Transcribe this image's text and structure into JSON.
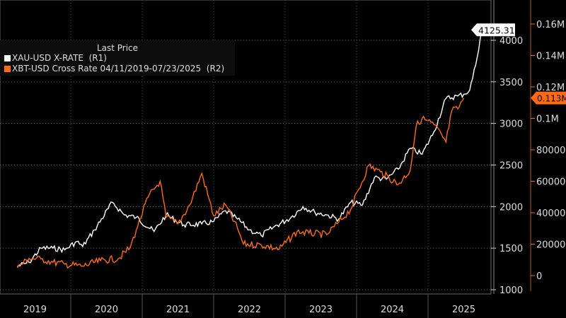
{
  "chart_data": {
    "type": "line",
    "legend_title": "Last Price",
    "legend_placement": "top-left",
    "x_tick_labels": [
      "2019",
      "2020",
      "2021",
      "2022",
      "2023",
      "2024",
      "2025"
    ],
    "left_axis": {
      "ticks": [
        1000,
        1500,
        2000,
        2500,
        3000,
        3500,
        4000
      ],
      "range": [
        1000,
        4500
      ]
    },
    "right_axis": {
      "ticks": [
        0,
        20000,
        40000,
        60000,
        80000,
        100000,
        120000,
        140000,
        160000
      ],
      "tick_labels": [
        "0",
        "20000",
        "40000",
        "60000",
        "80000",
        "0.1M",
        "0.12M",
        "0.14M",
        "0.16M"
      ],
      "range": [
        -5000,
        175000
      ]
    },
    "series": [
      {
        "name": "XAU-USD X-RATE  (R1)",
        "axis": "left",
        "color": "#ffffff",
        "last_label": "4125.31",
        "x": [
          "2019-04",
          "2019-06",
          "2019-08",
          "2019-10",
          "2019-12",
          "2020-02",
          "2020-03",
          "2020-05",
          "2020-08",
          "2020-10",
          "2020-12",
          "2021-03",
          "2021-05",
          "2021-08",
          "2021-11",
          "2022-01",
          "2022-03",
          "2022-05",
          "2022-07",
          "2022-09",
          "2022-11",
          "2023-02",
          "2023-04",
          "2023-06",
          "2023-08",
          "2023-10",
          "2023-12",
          "2024-02",
          "2024-04",
          "2024-06",
          "2024-08",
          "2024-10",
          "2024-12",
          "2025-02",
          "2025-04",
          "2025-06",
          "2025-07",
          "2025-08",
          "2025-09",
          "2025-10"
        ],
        "values": [
          1280,
          1330,
          1500,
          1500,
          1480,
          1580,
          1520,
          1720,
          2050,
          1900,
          1870,
          1700,
          1900,
          1780,
          1790,
          1820,
          1950,
          1850,
          1720,
          1650,
          1750,
          1870,
          2000,
          1930,
          1900,
          1850,
          2050,
          2020,
          2350,
          2330,
          2450,
          2700,
          2630,
          2900,
          3300,
          3330,
          3350,
          3400,
          3700,
          4125.31
        ]
      },
      {
        "name": "XBT-USD Cross Rate 04/11/2019-07/23/2025  (R2)",
        "axis": "right",
        "color": "#ff6a14",
        "last_label": "0.113M",
        "x": [
          "2019-04",
          "2019-06",
          "2019-08",
          "2019-10",
          "2019-12",
          "2020-03",
          "2020-06",
          "2020-09",
          "2020-11",
          "2020-12",
          "2021-02",
          "2021-04",
          "2021-05",
          "2021-07",
          "2021-09",
          "2021-11",
          "2022-01",
          "2022-03",
          "2022-05",
          "2022-06",
          "2022-09",
          "2022-12",
          "2023-03",
          "2023-05",
          "2023-08",
          "2023-10",
          "2023-12",
          "2024-03",
          "2024-05",
          "2024-08",
          "2024-10",
          "2024-11",
          "2024-12",
          "2025-02",
          "2025-04",
          "2025-05",
          "2025-06",
          "2025-07"
        ],
        "values": [
          5000,
          11000,
          10500,
          8500,
          7200,
          6000,
          9500,
          10800,
          18000,
          29000,
          50000,
          60000,
          37000,
          33000,
          45000,
          65000,
          38000,
          45000,
          30000,
          20000,
          19500,
          16800,
          28000,
          27000,
          26000,
          34000,
          42000,
          70000,
          66000,
          58000,
          67000,
          95000,
          100000,
          96000,
          85000,
          105000,
          106000,
          113000
        ]
      }
    ]
  }
}
